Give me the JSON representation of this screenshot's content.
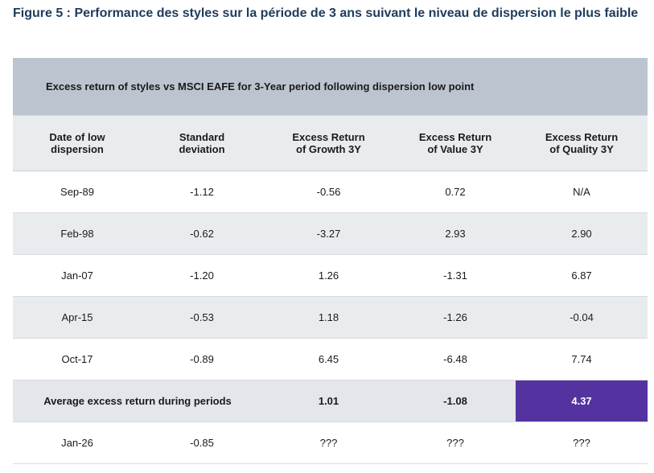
{
  "figure_title": "Figure 5 : Performance des styles sur la période de 3 ans suivant le niveau de dispersion le plus faible",
  "table": {
    "caption": "Excess return of styles vs MSCI EAFE for 3-Year period following dispersion low point",
    "headers": [
      [
        "Date of low",
        "dispersion"
      ],
      [
        "Standard",
        "deviation"
      ],
      [
        "Excess Return",
        "of Growth 3Y"
      ],
      [
        "Excess Return",
        "of Value 3Y"
      ],
      [
        "Excess Return",
        "of Quality 3Y"
      ]
    ],
    "rows": [
      [
        "Sep-89",
        "-1.12",
        "-0.56",
        "0.72",
        "N/A"
      ],
      [
        "Feb-98",
        "-0.62",
        "-3.27",
        "2.93",
        "2.90"
      ],
      [
        "Jan-07",
        "-1.20",
        "1.26",
        "-1.31",
        "6.87"
      ],
      [
        "Apr-15",
        "-0.53",
        "1.18",
        "-1.26",
        "-0.04"
      ],
      [
        "Oct-17",
        "-0.89",
        "6.45",
        "-6.48",
        "7.74"
      ]
    ],
    "average": {
      "label": "Average excess return during periods",
      "growth": "1.01",
      "value": "-1.08",
      "quality": "4.37"
    },
    "last_row": [
      "Jan-26",
      "-0.85",
      "???",
      "???",
      "???"
    ]
  },
  "colors": {
    "highlight": "#5433a0",
    "caption_bg": "#bcc5cf",
    "title": "#1f3b5c"
  }
}
